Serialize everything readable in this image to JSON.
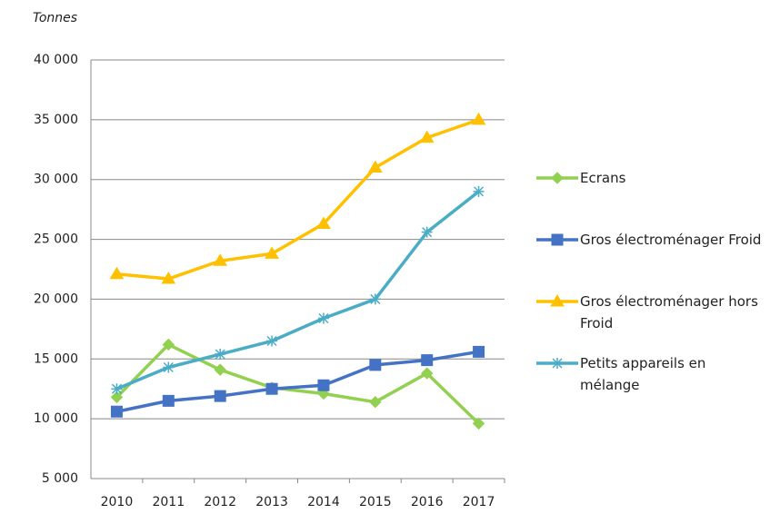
{
  "chart_data": {
    "type": "line",
    "y_label": "Tonnes",
    "categories": [
      "2010",
      "2011",
      "2012",
      "2013",
      "2014",
      "2015",
      "2016",
      "2017"
    ],
    "series": [
      {
        "name": "Ecrans",
        "color": "#92d050",
        "marker": "diamond",
        "values": [
          11800,
          16200,
          14100,
          12600,
          12100,
          11400,
          13800,
          9600
        ]
      },
      {
        "name": "Gros électroménager Froid",
        "color": "#4472c4",
        "marker": "square",
        "values": [
          10600,
          11500,
          11900,
          12500,
          12800,
          14500,
          14900,
          15600
        ]
      },
      {
        "name": "Gros électroménager hors Froid",
        "color": "#ffc000",
        "marker": "triangle",
        "values": [
          22100,
          21700,
          23200,
          23800,
          26300,
          31000,
          33500,
          35000
        ]
      },
      {
        "name": "Petits appareils en mélange",
        "color": "#4bacc6",
        "marker": "asterisk",
        "values": [
          12500,
          14300,
          15400,
          16500,
          18400,
          20000,
          25600,
          29000
        ]
      }
    ],
    "ylim": [
      5000,
      40000
    ],
    "yticks": [
      {
        "value": 5000,
        "label": "5 000"
      },
      {
        "value": 10000,
        "label": "10 000"
      },
      {
        "value": 15000,
        "label": "15 000"
      },
      {
        "value": 20000,
        "label": "20 000"
      },
      {
        "value": 25000,
        "label": "25 000"
      },
      {
        "value": 30000,
        "label": "30 000"
      },
      {
        "value": 35000,
        "label": "35 000"
      },
      {
        "value": 40000,
        "label": "40 000"
      }
    ],
    "grid": true,
    "legend": "right"
  }
}
